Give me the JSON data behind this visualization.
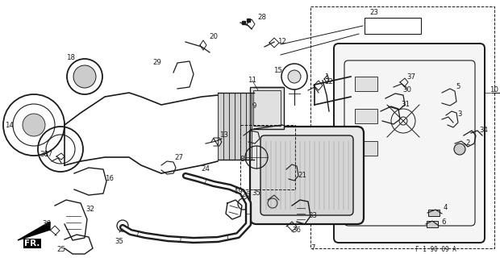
{
  "bg_color": "#ffffff",
  "line_color": "#1a1a1a",
  "ref_code": "F 1 90 09 A",
  "fig_width": 6.2,
  "fig_height": 3.2,
  "dpi": 100
}
